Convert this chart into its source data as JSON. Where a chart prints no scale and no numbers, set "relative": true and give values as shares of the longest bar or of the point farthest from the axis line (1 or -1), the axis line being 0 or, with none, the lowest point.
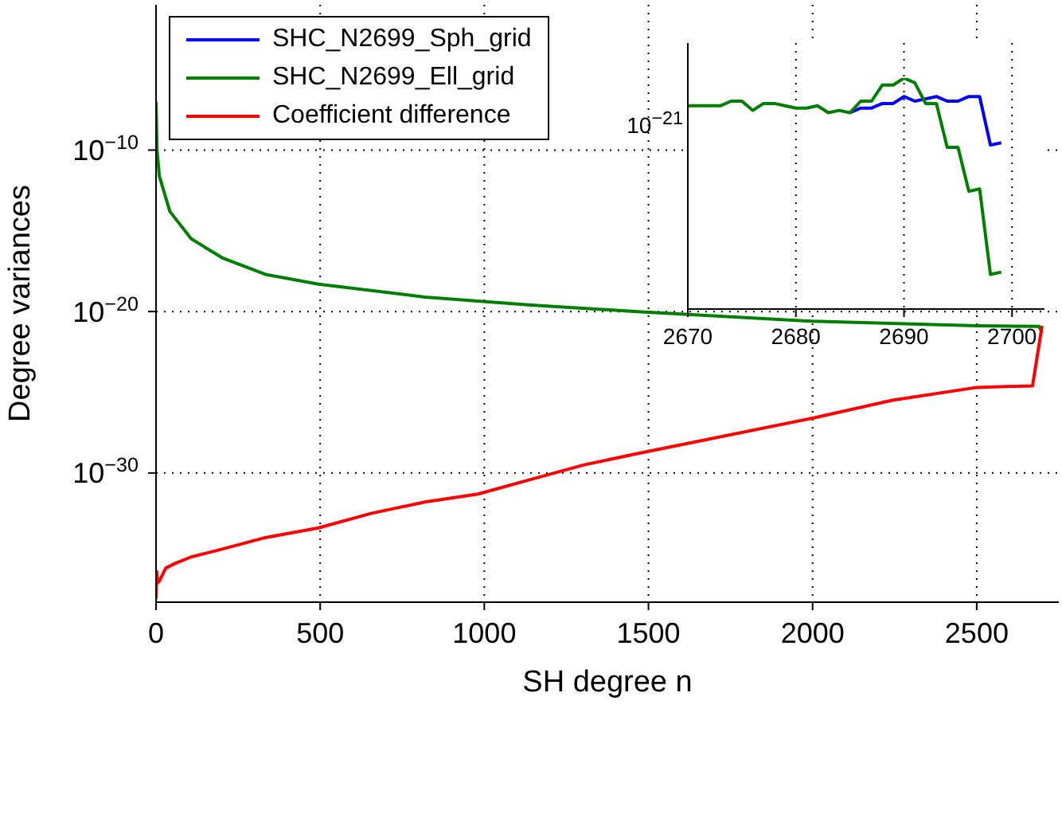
{
  "chart_data": [
    {
      "type": "line",
      "xlabel": "SH degree n",
      "ylabel": "Degree variances",
      "log": "y",
      "grid": true,
      "legend": "top left",
      "xlim": [
        0,
        2750
      ],
      "xticks": [
        0,
        500,
        1000,
        1500,
        2000,
        2500
      ],
      "ylim": [
        1e-38,
        0.1
      ],
      "yticks": [
        {
          "value": 1e-30,
          "label": "10$^{−30}$"
        },
        {
          "value": 1e-20,
          "label": "10$^{−20}$"
        },
        {
          "value": 1e-10,
          "label": "10$^{−10}$"
        }
      ],
      "series": [
        {
          "name": "SHC_N2699_Sph_grid",
          "color": "#0000ff"
        },
        {
          "name": "SHC_N2699_Ell_grid",
          "color": "#008000",
          "x": [
            0,
            3,
            10,
            42,
            107,
            204,
            333,
            495,
            819,
            1142,
            1466,
            2000,
            2500,
            2690,
            2699
          ],
          "values": [
            1e-07,
            1e-10,
            2.5e-12,
            1.6e-14,
            3.2e-16,
            2e-17,
            2e-18,
            5e-19,
            7.9e-20,
            2.5e-20,
            1e-20,
            2.5e-21,
            1.3e-21,
            1.2e-21,
            4.8e-22
          ]
        },
        {
          "name": "Coefficient difference",
          "color": "#ff0000",
          "x": [
            0,
            2,
            5,
            10,
            30,
            58,
            107,
            204,
            333,
            495,
            657,
            819,
            981,
            1142,
            1304,
            1466,
            2000,
            2243,
            2500,
            2670,
            2699
          ],
          "values": [
            1.6e-38,
            7.9e-37,
            1.6e-37,
            2e-37,
            1.3e-36,
            2.5e-36,
            6.3e-36,
            2e-35,
            1e-34,
            4e-34,
            3.2e-33,
            1.6e-32,
            5e-32,
            4e-31,
            3.2e-30,
            1.6e-29,
            2.5e-27,
            3.2e-26,
            2e-25,
            2.5e-25,
            1.3e-21
          ]
        }
      ]
    },
    {
      "type": "line",
      "relative": true,
      "grid": "x",
      "annotations": [
        "10$^{−21}$"
      ],
      "xlim": [
        2670,
        2703
      ],
      "xticks": [
        2670,
        2680,
        2690,
        2700
      ],
      "x": [
        2670,
        2671,
        2672,
        2673,
        2674,
        2675,
        2676,
        2677,
        2678,
        2679,
        2680,
        2681,
        2682,
        2683,
        2684,
        2685,
        2686,
        2687,
        2688,
        2689,
        2690,
        2691,
        2692,
        2693,
        2694,
        2695,
        2696,
        2697,
        2698,
        2699
      ],
      "series": [
        {
          "color": "#0000ff",
          "values": [
            null,
            null,
            null,
            null,
            null,
            null,
            null,
            null,
            null,
            null,
            null,
            null,
            null,
            null,
            null,
            0.85,
            0.87,
            0.87,
            0.89,
            0.89,
            0.92,
            0.9,
            0.91,
            0.92,
            0.9,
            0.9,
            0.92,
            0.92,
            0.71,
            0.72
          ]
        },
        {
          "color": "#008000",
          "values": [
            0.88,
            0.88,
            0.88,
            0.88,
            0.9,
            0.9,
            0.86,
            0.89,
            0.89,
            0.88,
            0.87,
            0.87,
            0.88,
            0.85,
            0.86,
            0.85,
            0.9,
            0.9,
            0.97,
            0.97,
            1,
            0.98,
            0.89,
            0.89,
            0.7,
            0.7,
            0.51,
            0.52,
            0.15,
            0.16
          ]
        }
      ]
    }
  ]
}
